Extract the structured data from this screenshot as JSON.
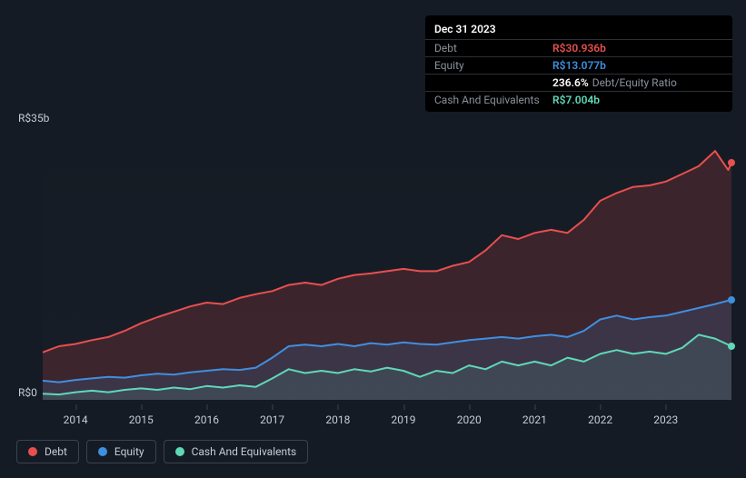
{
  "tooltip": {
    "date": "Dec 31 2023",
    "rows": [
      {
        "label": "Debt",
        "value": "R$30.936b",
        "color": "#e84f4f"
      },
      {
        "label": "Equity",
        "value": "R$13.077b",
        "color": "#3f8fe0"
      },
      {
        "ratio_value": "236.6%",
        "ratio_label": "Debt/Equity Ratio"
      },
      {
        "label": "Cash And Equivalents",
        "value": "R$7.004b",
        "color": "#5fd8b8"
      }
    ]
  },
  "chart": {
    "type": "area",
    "background_color": "#151b24",
    "grid_color": "#3a4250",
    "y_axis": {
      "min": 0,
      "max": 35,
      "labels": [
        {
          "value": 35,
          "text": "R$35b"
        },
        {
          "value": 0,
          "text": "R$0"
        }
      ],
      "label_color": "#c5ccd6",
      "label_fontsize": 12
    },
    "x_axis": {
      "min": 2013.5,
      "max": 2024.0,
      "ticks": [
        2014,
        2015,
        2016,
        2017,
        2018,
        2019,
        2020,
        2021,
        2022,
        2023
      ],
      "label_color": "#c5ccd6",
      "label_fontsize": 12
    },
    "series": [
      {
        "name": "Debt",
        "color": "#e84f4f",
        "fill_opacity": 0.18,
        "line_width": 2,
        "data": [
          [
            2013.5,
            6.2
          ],
          [
            2013.75,
            7.0
          ],
          [
            2014.0,
            7.3
          ],
          [
            2014.25,
            7.8
          ],
          [
            2014.5,
            8.2
          ],
          [
            2014.75,
            9.0
          ],
          [
            2015.0,
            10.0
          ],
          [
            2015.25,
            10.8
          ],
          [
            2015.5,
            11.5
          ],
          [
            2015.75,
            12.2
          ],
          [
            2016.0,
            12.7
          ],
          [
            2016.25,
            12.5
          ],
          [
            2016.5,
            13.3
          ],
          [
            2016.75,
            13.8
          ],
          [
            2017.0,
            14.2
          ],
          [
            2017.25,
            15.0
          ],
          [
            2017.5,
            15.3
          ],
          [
            2017.75,
            15.0
          ],
          [
            2018.0,
            15.8
          ],
          [
            2018.25,
            16.3
          ],
          [
            2018.5,
            16.5
          ],
          [
            2018.75,
            16.8
          ],
          [
            2019.0,
            17.1
          ],
          [
            2019.25,
            16.8
          ],
          [
            2019.5,
            16.8
          ],
          [
            2019.75,
            17.5
          ],
          [
            2020.0,
            18.0
          ],
          [
            2020.25,
            19.5
          ],
          [
            2020.5,
            21.5
          ],
          [
            2020.75,
            21.0
          ],
          [
            2021.0,
            21.8
          ],
          [
            2021.25,
            22.2
          ],
          [
            2021.5,
            21.8
          ],
          [
            2021.75,
            23.5
          ],
          [
            2022.0,
            26.0
          ],
          [
            2022.25,
            27.0
          ],
          [
            2022.5,
            27.8
          ],
          [
            2022.75,
            28.0
          ],
          [
            2023.0,
            28.5
          ],
          [
            2023.25,
            29.5
          ],
          [
            2023.5,
            30.5
          ],
          [
            2023.75,
            32.5
          ],
          [
            2023.95,
            30.0
          ],
          [
            2024.0,
            30.936
          ]
        ]
      },
      {
        "name": "Equity",
        "color": "#3f8fe0",
        "fill_opacity": 0.15,
        "line_width": 2,
        "data": [
          [
            2013.5,
            2.5
          ],
          [
            2013.75,
            2.3
          ],
          [
            2014.0,
            2.6
          ],
          [
            2014.25,
            2.8
          ],
          [
            2014.5,
            3.0
          ],
          [
            2014.75,
            2.9
          ],
          [
            2015.0,
            3.2
          ],
          [
            2015.25,
            3.4
          ],
          [
            2015.5,
            3.3
          ],
          [
            2015.75,
            3.6
          ],
          [
            2016.0,
            3.8
          ],
          [
            2016.25,
            4.0
          ],
          [
            2016.5,
            3.9
          ],
          [
            2016.75,
            4.2
          ],
          [
            2017.0,
            5.5
          ],
          [
            2017.25,
            7.0
          ],
          [
            2017.5,
            7.2
          ],
          [
            2017.75,
            7.0
          ],
          [
            2018.0,
            7.3
          ],
          [
            2018.25,
            7.0
          ],
          [
            2018.5,
            7.4
          ],
          [
            2018.75,
            7.2
          ],
          [
            2019.0,
            7.5
          ],
          [
            2019.25,
            7.3
          ],
          [
            2019.5,
            7.2
          ],
          [
            2019.75,
            7.5
          ],
          [
            2020.0,
            7.8
          ],
          [
            2020.25,
            8.0
          ],
          [
            2020.5,
            8.2
          ],
          [
            2020.75,
            8.0
          ],
          [
            2021.0,
            8.3
          ],
          [
            2021.25,
            8.5
          ],
          [
            2021.5,
            8.2
          ],
          [
            2021.75,
            9.0
          ],
          [
            2022.0,
            10.5
          ],
          [
            2022.25,
            11.0
          ],
          [
            2022.5,
            10.5
          ],
          [
            2022.75,
            10.8
          ],
          [
            2023.0,
            11.0
          ],
          [
            2023.25,
            11.5
          ],
          [
            2023.5,
            12.0
          ],
          [
            2023.75,
            12.5
          ],
          [
            2024.0,
            13.077
          ]
        ]
      },
      {
        "name": "Cash And Equivalents",
        "color": "#5fd8b8",
        "fill_opacity": 0.12,
        "line_width": 2,
        "data": [
          [
            2013.5,
            0.8
          ],
          [
            2013.75,
            0.7
          ],
          [
            2014.0,
            1.0
          ],
          [
            2014.25,
            1.2
          ],
          [
            2014.5,
            1.0
          ],
          [
            2014.75,
            1.3
          ],
          [
            2015.0,
            1.5
          ],
          [
            2015.25,
            1.3
          ],
          [
            2015.5,
            1.6
          ],
          [
            2015.75,
            1.4
          ],
          [
            2016.0,
            1.8
          ],
          [
            2016.25,
            1.6
          ],
          [
            2016.5,
            1.9
          ],
          [
            2016.75,
            1.7
          ],
          [
            2017.0,
            2.8
          ],
          [
            2017.25,
            4.0
          ],
          [
            2017.5,
            3.5
          ],
          [
            2017.75,
            3.8
          ],
          [
            2018.0,
            3.5
          ],
          [
            2018.25,
            4.0
          ],
          [
            2018.5,
            3.7
          ],
          [
            2018.75,
            4.2
          ],
          [
            2019.0,
            3.8
          ],
          [
            2019.25,
            3.0
          ],
          [
            2019.5,
            3.8
          ],
          [
            2019.75,
            3.5
          ],
          [
            2020.0,
            4.5
          ],
          [
            2020.25,
            4.0
          ],
          [
            2020.5,
            5.0
          ],
          [
            2020.75,
            4.5
          ],
          [
            2021.0,
            5.0
          ],
          [
            2021.25,
            4.5
          ],
          [
            2021.5,
            5.5
          ],
          [
            2021.75,
            5.0
          ],
          [
            2022.0,
            6.0
          ],
          [
            2022.25,
            6.5
          ],
          [
            2022.5,
            6.0
          ],
          [
            2022.75,
            6.3
          ],
          [
            2023.0,
            6.0
          ],
          [
            2023.25,
            6.8
          ],
          [
            2023.5,
            8.5
          ],
          [
            2023.75,
            8.0
          ],
          [
            2024.0,
            7.004
          ]
        ]
      }
    ]
  },
  "legend": {
    "items": [
      {
        "label": "Debt",
        "color": "#e84f4f"
      },
      {
        "label": "Equity",
        "color": "#3f8fe0"
      },
      {
        "label": "Cash And Equivalents",
        "color": "#5fd8b8"
      }
    ],
    "border_color": "#3a4250",
    "text_color": "#c5ccd6",
    "fontsize": 12
  }
}
